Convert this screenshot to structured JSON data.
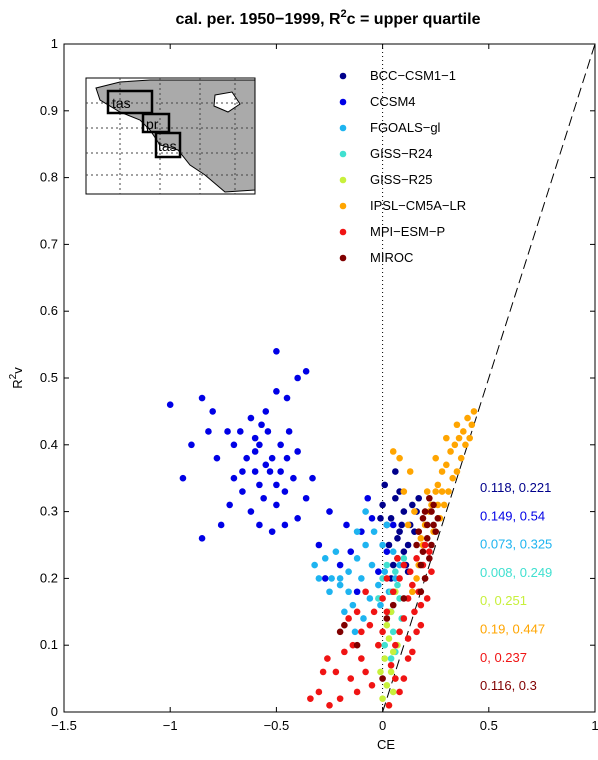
{
  "chart_data": {
    "type": "scatter",
    "title": {
      "pre": "cal. per. 1950−1999, R",
      "sup": "2",
      "post": "c = upper quartile"
    },
    "xlabel": "CE",
    "ylabel": {
      "base": "R",
      "sup": "2",
      "post": "v"
    },
    "xlim": [
      -1.5,
      1
    ],
    "ylim": [
      0,
      1
    ],
    "x_ticks": [
      "−1.5",
      "−1",
      "−0.5",
      "0",
      "0.5",
      "1"
    ],
    "y_ticks": [
      "0",
      "0.1",
      "0.2",
      "0.3",
      "0.4",
      "0.5",
      "0.6",
      "0.7",
      "0.8",
      "0.9",
      "1"
    ],
    "grid": false,
    "legend_position": "top-right",
    "reference_lines": {
      "one_to_one_dashed": true,
      "ce_zero_dotted": true
    },
    "inset_map_labels": [
      "tas",
      "pr",
      "tas"
    ],
    "series": [
      {
        "name": "BCC−CSM1−1",
        "color": "#00008b",
        "annotation": "0.118, 0.221",
        "points": [
          [
            0.01,
            0.34
          ],
          [
            0.04,
            0.29
          ],
          [
            0.06,
            0.32
          ],
          [
            0.08,
            0.27
          ],
          [
            0.1,
            0.3
          ],
          [
            0.12,
            0.25
          ],
          [
            0.14,
            0.31
          ],
          [
            0.05,
            0.22
          ],
          [
            0.07,
            0.26
          ],
          [
            0.03,
            0.25
          ],
          [
            0.09,
            0.28
          ],
          [
            0.11,
            0.22
          ],
          [
            0.13,
            0.28
          ],
          [
            0.02,
            0.28
          ],
          [
            0.16,
            0.3
          ],
          [
            0.0,
            0.31
          ],
          [
            0.06,
            0.36
          ],
          [
            0.08,
            0.33
          ],
          [
            -0.01,
            0.29
          ],
          [
            0.15,
            0.27
          ],
          [
            0.1,
            0.24
          ],
          [
            0.04,
            0.2
          ],
          [
            0.12,
            0.21
          ],
          [
            0.07,
            0.23
          ],
          [
            0.17,
            0.32
          ]
        ]
      },
      {
        "name": "CCSM4",
        "color": "#0000e6",
        "annotation": "0.149, 0.54",
        "points": [
          [
            -0.5,
            0.54
          ],
          [
            -0.36,
            0.51
          ],
          [
            -0.4,
            0.5
          ],
          [
            -1.0,
            0.46
          ],
          [
            -0.85,
            0.47
          ],
          [
            -0.8,
            0.45
          ],
          [
            -0.73,
            0.42
          ],
          [
            -0.67,
            0.42
          ],
          [
            -0.62,
            0.44
          ],
          [
            -0.55,
            0.45
          ],
          [
            -0.5,
            0.48
          ],
          [
            -0.45,
            0.47
          ],
          [
            -0.58,
            0.4
          ],
          [
            -0.52,
            0.38
          ],
          [
            -0.48,
            0.36
          ],
          [
            -0.6,
            0.36
          ],
          [
            -0.66,
            0.33
          ],
          [
            -0.7,
            0.35
          ],
          [
            -0.78,
            0.38
          ],
          [
            -0.82,
            0.42
          ],
          [
            -0.9,
            0.4
          ],
          [
            -0.94,
            0.35
          ],
          [
            -0.56,
            0.32
          ],
          [
            -0.62,
            0.3
          ],
          [
            -0.5,
            0.31
          ],
          [
            -0.46,
            0.33
          ],
          [
            -0.42,
            0.35
          ],
          [
            -0.4,
            0.39
          ],
          [
            -0.44,
            0.42
          ],
          [
            -0.54,
            0.42
          ],
          [
            -0.58,
            0.34
          ],
          [
            -0.64,
            0.38
          ],
          [
            -0.7,
            0.4
          ],
          [
            -0.72,
            0.31
          ],
          [
            -0.76,
            0.28
          ],
          [
            -0.85,
            0.26
          ],
          [
            -0.58,
            0.28
          ],
          [
            -0.52,
            0.27
          ],
          [
            -0.46,
            0.28
          ],
          [
            -0.4,
            0.29
          ],
          [
            -0.36,
            0.32
          ],
          [
            -0.33,
            0.35
          ],
          [
            -0.3,
            0.25
          ],
          [
            -0.2,
            0.22
          ],
          [
            -0.15,
            0.24
          ],
          [
            -0.1,
            0.27
          ],
          [
            -0.05,
            0.29
          ],
          [
            -0.25,
            0.3
          ],
          [
            -0.12,
            0.18
          ],
          [
            -0.02,
            0.21
          ],
          [
            0.02,
            0.24
          ],
          [
            0.05,
            0.28
          ],
          [
            -0.07,
            0.32
          ],
          [
            -0.17,
            0.28
          ],
          [
            -0.27,
            0.2
          ],
          [
            -0.6,
            0.41
          ],
          [
            -0.48,
            0.4
          ],
          [
            -0.55,
            0.37
          ],
          [
            -0.66,
            0.36
          ],
          [
            -0.5,
            0.34
          ],
          [
            -0.6,
            0.39
          ],
          [
            -0.53,
            0.36
          ],
          [
            -0.45,
            0.38
          ],
          [
            -0.57,
            0.43
          ]
        ]
      },
      {
        "name": "FGOALS−gl",
        "color": "#1eb4f0",
        "annotation": "0.073, 0.325",
        "points": [
          [
            -0.32,
            0.22
          ],
          [
            -0.3,
            0.2
          ],
          [
            -0.25,
            0.18
          ],
          [
            -0.2,
            0.19
          ],
          [
            -0.16,
            0.21
          ],
          [
            -0.12,
            0.23
          ],
          [
            -0.08,
            0.25
          ],
          [
            -0.05,
            0.22
          ],
          [
            -0.02,
            0.19
          ],
          [
            0.01,
            0.21
          ],
          [
            0.03,
            0.18
          ],
          [
            0.05,
            0.24
          ],
          [
            -0.22,
            0.24
          ],
          [
            -0.27,
            0.23
          ],
          [
            -0.18,
            0.15
          ],
          [
            -0.14,
            0.16
          ],
          [
            -0.1,
            0.2
          ],
          [
            -0.06,
            0.17
          ],
          [
            0.0,
            0.25
          ],
          [
            0.02,
            0.28
          ],
          [
            -0.04,
            0.27
          ],
          [
            -0.08,
            0.3
          ],
          [
            -0.12,
            0.27
          ],
          [
            -0.2,
            0.2
          ],
          [
            -0.24,
            0.2
          ],
          [
            -0.16,
            0.18
          ],
          [
            0.06,
            0.2
          ],
          [
            0.08,
            0.22
          ],
          [
            -0.01,
            0.16
          ],
          [
            0.04,
            0.15
          ],
          [
            -0.09,
            0.14
          ],
          [
            -0.13,
            0.12
          ]
        ]
      },
      {
        "name": "GISS−R24",
        "color": "#40e0d0",
        "annotation": "0.008, 0.249",
        "points": [
          [
            0.0,
            0.2
          ],
          [
            0.02,
            0.22
          ],
          [
            0.04,
            0.18
          ],
          [
            0.06,
            0.21
          ],
          [
            0.08,
            0.17
          ],
          [
            0.03,
            0.15
          ],
          [
            0.05,
            0.12
          ],
          [
            0.07,
            0.19
          ],
          [
            0.01,
            0.1
          ],
          [
            0.04,
            0.08
          ],
          [
            0.09,
            0.14
          ],
          [
            0.06,
            0.09
          ],
          [
            -0.02,
            0.17
          ],
          [
            0.1,
            0.23
          ]
        ]
      },
      {
        "name": "GISS−R25",
        "color": "#c8f03c",
        "annotation": "0, 0.251",
        "points": [
          [
            0.0,
            0.02
          ],
          [
            0.02,
            0.04
          ],
          [
            0.04,
            0.06
          ],
          [
            0.06,
            0.05
          ],
          [
            0.01,
            0.08
          ],
          [
            0.03,
            0.11
          ],
          [
            0.05,
            0.09
          ],
          [
            0.07,
            0.1
          ],
          [
            0.02,
            0.13
          ],
          [
            -0.01,
            0.06
          ],
          [
            0.04,
            0.15
          ],
          [
            0.06,
            0.18
          ],
          [
            0.03,
            0.01
          ],
          [
            0.08,
            0.12
          ],
          [
            0.05,
            0.03
          ],
          [
            -0.02,
            0.1
          ]
        ]
      },
      {
        "name": "IPSL−CM5A−LR",
        "color": "#ffa500",
        "annotation": "0.19, 0.447",
        "points": [
          [
            0.43,
            0.45
          ],
          [
            0.42,
            0.43
          ],
          [
            0.4,
            0.44
          ],
          [
            0.38,
            0.42
          ],
          [
            0.36,
            0.41
          ],
          [
            0.34,
            0.4
          ],
          [
            0.32,
            0.39
          ],
          [
            0.3,
            0.37
          ],
          [
            0.28,
            0.36
          ],
          [
            0.26,
            0.34
          ],
          [
            0.25,
            0.33
          ],
          [
            0.23,
            0.31
          ],
          [
            0.22,
            0.3
          ],
          [
            0.2,
            0.28
          ],
          [
            0.18,
            0.26
          ],
          [
            0.37,
            0.38
          ],
          [
            0.35,
            0.36
          ],
          [
            0.31,
            0.33
          ],
          [
            0.29,
            0.31
          ],
          [
            0.27,
            0.29
          ],
          [
            0.24,
            0.27
          ],
          [
            0.33,
            0.35
          ],
          [
            0.39,
            0.4
          ],
          [
            0.41,
            0.41
          ],
          [
            0.21,
            0.33
          ],
          [
            0.25,
            0.38
          ],
          [
            0.3,
            0.41
          ],
          [
            0.35,
            0.43
          ],
          [
            0.15,
            0.3
          ],
          [
            0.12,
            0.28
          ],
          [
            0.1,
            0.33
          ],
          [
            0.13,
            0.36
          ],
          [
            0.08,
            0.38
          ],
          [
            0.05,
            0.39
          ],
          [
            0.19,
            0.25
          ],
          [
            0.17,
            0.22
          ],
          [
            0.16,
            0.2
          ],
          [
            0.14,
            0.18
          ],
          [
            0.26,
            0.31
          ],
          [
            0.28,
            0.33
          ]
        ]
      },
      {
        "name": "MPI−ESM−P",
        "color": "#f01414",
        "annotation": "0, 0.237",
        "points": [
          [
            -0.3,
            0.03
          ],
          [
            -0.25,
            0.01
          ],
          [
            -0.2,
            0.02
          ],
          [
            -0.22,
            0.06
          ],
          [
            -0.15,
            0.05
          ],
          [
            -0.12,
            0.03
          ],
          [
            -0.1,
            0.08
          ],
          [
            -0.08,
            0.06
          ],
          [
            -0.05,
            0.04
          ],
          [
            -0.02,
            0.1
          ],
          [
            0.0,
            0.12
          ],
          [
            0.02,
            0.15
          ],
          [
            0.05,
            0.18
          ],
          [
            0.08,
            0.2
          ],
          [
            0.1,
            0.22
          ],
          [
            0.12,
            0.17
          ],
          [
            0.14,
            0.19
          ],
          [
            0.1,
            0.14
          ],
          [
            0.08,
            0.12
          ],
          [
            0.06,
            0.1
          ],
          [
            0.12,
            0.11
          ],
          [
            0.14,
            0.09
          ],
          [
            0.16,
            0.12
          ],
          [
            0.18,
            0.16
          ],
          [
            0.2,
            0.2
          ],
          [
            0.22,
            0.24
          ],
          [
            0.15,
            0.15
          ],
          [
            0.17,
            0.18
          ],
          [
            0.19,
            0.22
          ],
          [
            0.2,
            0.25
          ],
          [
            0.1,
            0.05
          ],
          [
            0.12,
            0.08
          ],
          [
            0.06,
            0.05
          ],
          [
            0.04,
            0.07
          ],
          [
            -0.04,
            0.15
          ],
          [
            -0.06,
            0.13
          ],
          [
            -0.1,
            0.12
          ],
          [
            -0.14,
            0.1
          ],
          [
            -0.18,
            0.09
          ],
          [
            -0.12,
            0.15
          ],
          [
            -0.16,
            0.14
          ],
          [
            0.0,
            0.17
          ],
          [
            0.02,
            0.2
          ],
          [
            -0.08,
            0.18
          ],
          [
            0.07,
            0.23
          ],
          [
            0.13,
            0.21
          ],
          [
            0.16,
            0.23
          ],
          [
            0.21,
            0.17
          ],
          [
            0.23,
            0.21
          ],
          [
            0.18,
            0.13
          ],
          [
            0.03,
            0.01
          ],
          [
            0.08,
            0.03
          ],
          [
            -0.26,
            0.08
          ],
          [
            -0.28,
            0.06
          ],
          [
            -0.34,
            0.02
          ]
        ]
      },
      {
        "name": "MIROC",
        "color": "#800000",
        "annotation": "0.116, 0.3",
        "points": [
          [
            0.2,
            0.3
          ],
          [
            0.22,
            0.32
          ],
          [
            0.24,
            0.28
          ],
          [
            0.21,
            0.26
          ],
          [
            0.19,
            0.24
          ],
          [
            0.23,
            0.25
          ],
          [
            0.25,
            0.27
          ],
          [
            0.18,
            0.22
          ],
          [
            0.2,
            0.2
          ],
          [
            0.17,
            0.27
          ],
          [
            0.22,
            0.23
          ],
          [
            0.24,
            0.31
          ],
          [
            0.26,
            0.29
          ],
          [
            0.16,
            0.25
          ],
          [
            0.21,
            0.28
          ],
          [
            0.23,
            0.3
          ],
          [
            0.19,
            0.29
          ],
          [
            0.18,
            0.18
          ],
          [
            -0.18,
            0.13
          ],
          [
            -0.2,
            0.12
          ],
          [
            -0.12,
            0.1
          ],
          [
            0.0,
            0.05
          ],
          [
            0.02,
            0.14
          ],
          [
            0.05,
            0.16
          ],
          [
            0.1,
            0.17
          ]
        ]
      }
    ]
  }
}
